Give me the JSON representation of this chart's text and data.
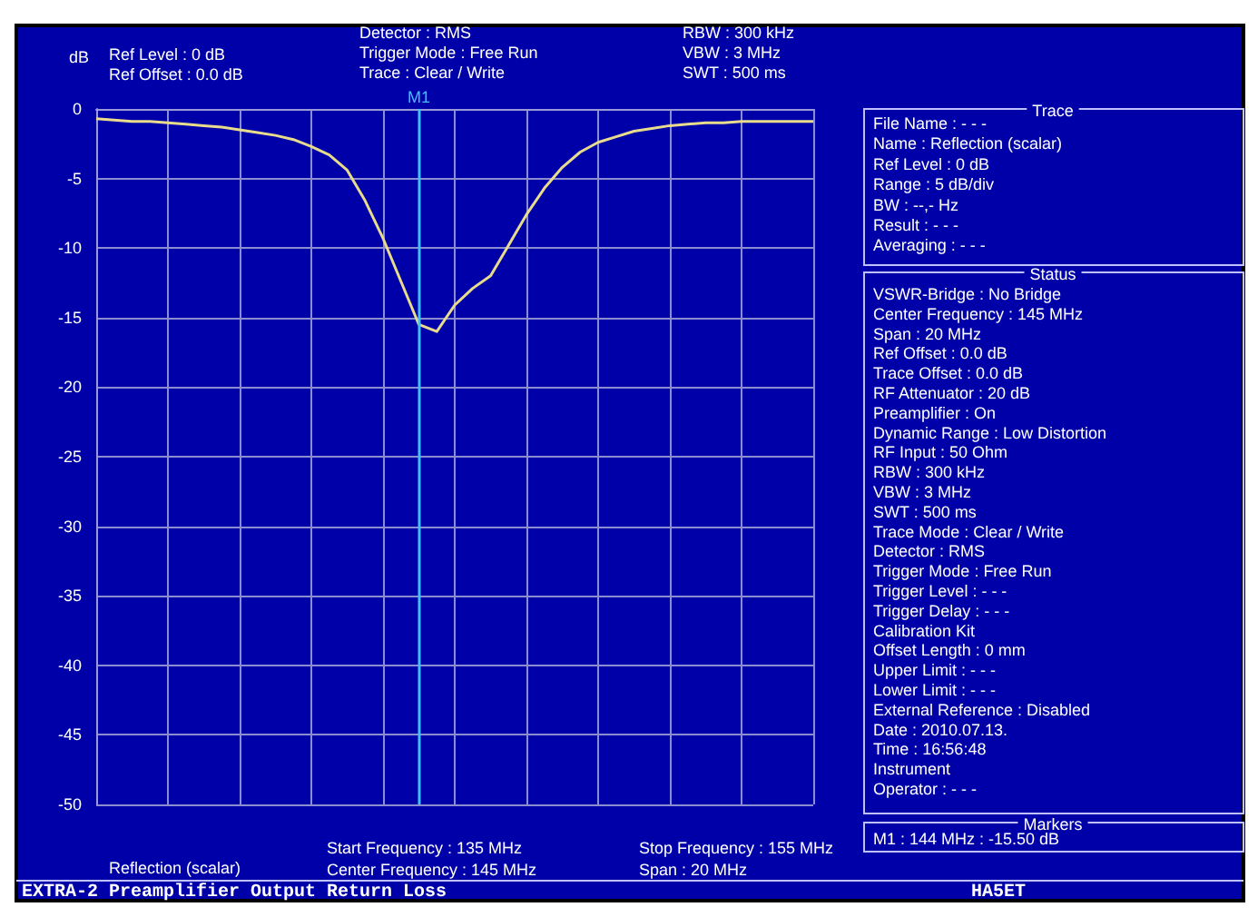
{
  "chart_data": {
    "type": "line",
    "ylabel": "dB",
    "categories": [
      null,
      null,
      null,
      null,
      null,
      null,
      null,
      null,
      null,
      null,
      null,
      null,
      null,
      null,
      null,
      null,
      null,
      null,
      null,
      null,
      null,
      null,
      null,
      null,
      null,
      null,
      null,
      null,
      null,
      null,
      null,
      null,
      null,
      null,
      null,
      null,
      null,
      null,
      null,
      null,
      null
    ],
    "series": [
      {
        "color": "#e8dc8c",
        "values": [
          -0.7,
          -0.8,
          -0.9,
          -0.9,
          -1.0,
          -1.1,
          -1.2,
          -1.3,
          -1.5,
          -1.7,
          -1.9,
          -2.2,
          -2.7,
          -3.3,
          -4.4,
          -6.6,
          -9.3,
          -12.4,
          -15.5,
          -16,
          -14.1,
          -12.9,
          -12,
          -9.8,
          -7.6,
          -5.7,
          -4.2,
          -3.1,
          -2.4,
          -2,
          -1.6,
          -1.4,
          -1.2,
          -1.1,
          -1.0,
          -1.0,
          -0.9,
          -0.9,
          -0.9,
          -0.9,
          -0.9
        ]
      }
    ],
    "ylim": [
      -50,
      0
    ],
    "yticks": [
      -50,
      -45,
      -40,
      -35,
      -30,
      -25,
      -20,
      -15,
      -10,
      -5,
      0
    ],
    "tick_labels": "y",
    "grid": true,
    "marker": "none",
    "line_style": "solid",
    "annotations": [
      "Ref Level : 0 dB",
      "Ref Offset : 0.0 dB",
      "Detector : RMS",
      "Trigger Mode : Free Run",
      "Trace : Clear / Write",
      "RBW : 300 kHz",
      "VBW : 3 MHz",
      "SWT : 500 ms",
      "Reflection (scalar)",
      "Start Frequency : 135 MHz",
      "Center Frequency : 145 MHz",
      "Stop Frequency : 155 MHz",
      "Span : 20 MHz",
      "EXTRA-2 Preamplifier Output Return Loss",
      "HA5ET",
      "Trace",
      "File Name : - - -",
      "Name : Reflection (scalar)",
      "Ref Level : 0 dB",
      "Range : 5 dB/div",
      "BW : --,- Hz",
      "Result : - - -",
      "Averaging : - - -",
      "Status",
      "VSWR-Bridge : No Bridge",
      "Center Frequency : 145 MHz",
      "Span : 20 MHz",
      "Ref Offset : 0.0 dB",
      "Trace Offset : 0.0 dB",
      "RF Attenuator : 20 dB",
      "Preamplifier : On",
      "Dynamic Range : Low Distortion",
      "RF Input : 50 Ohm",
      "RBW : 300 kHz",
      "VBW : 3 MHz",
      "SWT : 500 ms",
      "Trace Mode : Clear / Write",
      "Detector : RMS",
      "Trigger Mode : Free Run",
      "Trigger Level : - - -",
      "Trigger Delay : - - -",
      "Calibration Kit",
      "Offset Length : 0 mm",
      "Upper Limit : - - -",
      "Lower Limit : - - -",
      "External Reference : Disabled",
      "Date : 2010.07.13.",
      "Time : 16:56:48",
      "Instrument",
      "Operator : - - -",
      "Markers",
      "M1 : 144 MHz : -15.50 dB",
      "M1"
    ]
  }
}
